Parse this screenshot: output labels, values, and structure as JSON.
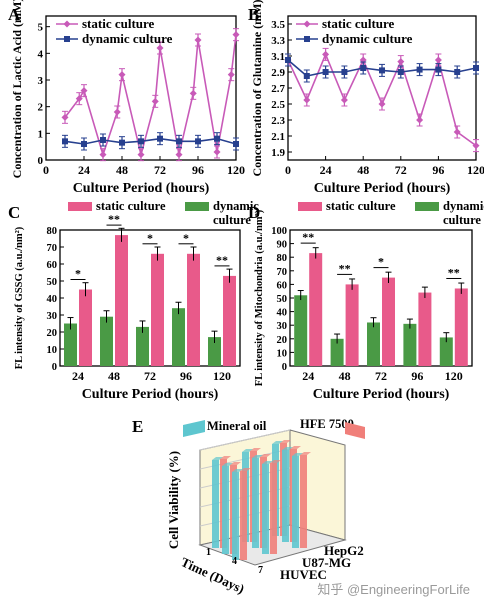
{
  "watermark": "知乎 @EngineeringForLife",
  "colors": {
    "static": "#c85ab8",
    "dynamic": "#27408f",
    "static_bar": "#e85a8a",
    "dynamic_bar": "#4a9a45"
  },
  "chart_data": [
    {
      "panel": "A",
      "type": "line",
      "xlabel": "Culture Period (hours)",
      "ylabel": "Concentration of Lactic Acid (mM)",
      "xlim": [
        0,
        120
      ],
      "ylim": [
        0,
        5.4
      ],
      "xticks": [
        0,
        24,
        48,
        72,
        96,
        120
      ],
      "series": [
        {
          "name": "static culture",
          "x": [
            12,
            21,
            24,
            36,
            45,
            48,
            60,
            69,
            72,
            84,
            93,
            96,
            108,
            117,
            120
          ],
          "y": [
            1.6,
            2.3,
            2.6,
            0.2,
            1.8,
            3.2,
            0.2,
            2.2,
            4.2,
            0.2,
            2.5,
            4.5,
            0.3,
            3.2,
            4.7
          ]
        },
        {
          "name": "dynamic culture",
          "x": [
            12,
            24,
            36,
            48,
            60,
            72,
            84,
            96,
            108,
            120
          ],
          "y": [
            0.7,
            0.6,
            0.75,
            0.65,
            0.7,
            0.8,
            0.7,
            0.7,
            0.8,
            0.6
          ]
        }
      ]
    },
    {
      "panel": "B",
      "type": "line",
      "xlabel": "Culture Period (hours)",
      "ylabel": "Concentration of Glutamine (mM)",
      "xlim": [
        0,
        120
      ],
      "ylim": [
        1.8,
        3.6
      ],
      "xticks": [
        0,
        24,
        48,
        72,
        96,
        120
      ],
      "yticks": [
        1.9,
        2.1,
        2.3,
        2.5,
        2.7,
        2.9,
        3.1,
        3.3,
        3.5
      ],
      "series": [
        {
          "name": "static culture",
          "x": [
            0,
            12,
            24,
            36,
            48,
            60,
            72,
            84,
            96,
            108,
            120
          ],
          "y": [
            3.05,
            2.55,
            3.12,
            2.55,
            3.05,
            2.5,
            3.03,
            2.3,
            3.05,
            2.15,
            1.98
          ]
        },
        {
          "name": "dynamic culture",
          "x": [
            0,
            12,
            24,
            36,
            48,
            60,
            72,
            84,
            96,
            108,
            120
          ],
          "y": [
            3.05,
            2.85,
            2.9,
            2.9,
            2.95,
            2.92,
            2.9,
            2.93,
            2.93,
            2.9,
            2.95
          ]
        }
      ]
    },
    {
      "panel": "C",
      "type": "bar",
      "xlabel": "Culture Period (hours)",
      "ylabel": "FL intensity of GSSG (a.u./nm²)",
      "ylim": [
        0,
        80
      ],
      "categories": [
        "24",
        "48",
        "72",
        "96",
        "120"
      ],
      "series": [
        {
          "name": "dynamic culture",
          "values": [
            25,
            29,
            23,
            34,
            17
          ]
        },
        {
          "name": "static culture",
          "values": [
            45,
            77,
            66,
            66,
            53
          ]
        }
      ],
      "significance": [
        "*",
        "**",
        "*",
        "*",
        "**"
      ]
    },
    {
      "panel": "D",
      "type": "bar",
      "xlabel": "Culture Period (hours)",
      "ylabel": "FL intensity of Mitochondria (a.u./nm²)",
      "ylim": [
        0,
        100
      ],
      "categories": [
        "24",
        "48",
        "72",
        "96",
        "120"
      ],
      "series": [
        {
          "name": "dynamic culture",
          "values": [
            52,
            20,
            32,
            31,
            21
          ]
        },
        {
          "name": "static culture",
          "values": [
            83,
            60,
            65,
            54,
            57
          ]
        }
      ],
      "significance": [
        "**",
        "**",
        "*",
        "",
        "**"
      ]
    },
    {
      "panel": "E",
      "type": "bar3d",
      "zlabel": "Cell Viability (%)",
      "xlabel": "Time (Days)",
      "days": [
        "1",
        "4",
        "7"
      ],
      "cell_lines": [
        "HepG2",
        "U87-MG",
        "HUVEC"
      ],
      "legend": [
        "Mineral oil",
        "HFE 7500"
      ]
    }
  ]
}
